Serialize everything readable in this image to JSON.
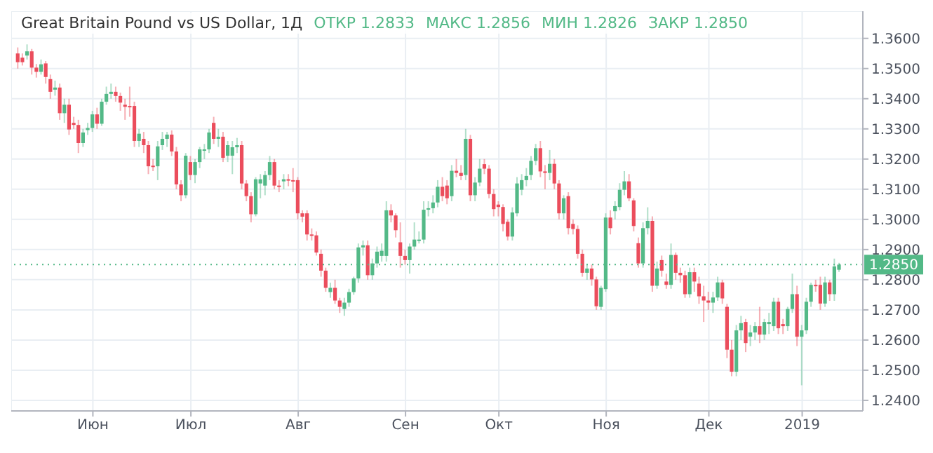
{
  "chart_data": {
    "type": "candlestick",
    "title": "Great Britain Pound vs US Dollar, 1Д",
    "annotations": [
      "ОТКР 1.2833",
      "МАКС 1.2856",
      "МИН 1.2826",
      "ЗАКР 1.2850"
    ],
    "categories": [
      null,
      null,
      null,
      null,
      null,
      null,
      null,
      null,
      null,
      null,
      null,
      null,
      null,
      null,
      null,
      null,
      "Июн",
      null,
      null,
      null,
      null,
      null,
      null,
      null,
      null,
      null,
      null,
      null,
      null,
      null,
      null,
      null,
      null,
      null,
      null,
      null,
      null,
      "Июл",
      null,
      null,
      null,
      null,
      null,
      null,
      null,
      null,
      null,
      null,
      null,
      null,
      null,
      null,
      null,
      null,
      null,
      null,
      null,
      null,
      null,
      null,
      "Авг",
      null,
      null,
      null,
      null,
      null,
      null,
      null,
      null,
      null,
      null,
      null,
      null,
      null,
      null,
      null,
      null,
      null,
      null,
      null,
      null,
      null,
      null,
      "Сен",
      null,
      null,
      null,
      null,
      null,
      null,
      null,
      null,
      null,
      null,
      null,
      null,
      null,
      null,
      null,
      null,
      null,
      null,
      null,
      "Окт",
      null,
      null,
      null,
      null,
      null,
      null,
      null,
      null,
      null,
      null,
      null,
      null,
      null,
      null,
      null,
      null,
      null,
      null,
      null,
      null,
      null,
      null,
      "Ноя",
      null,
      null,
      null,
      null,
      null,
      null,
      null,
      null,
      null,
      null,
      null,
      null,
      null,
      null,
      null,
      null,
      null,
      null,
      null,
      null,
      null,
      "Дек",
      null,
      null,
      null,
      null,
      null,
      null,
      null,
      null,
      null,
      null,
      null,
      null,
      null,
      null,
      null,
      null,
      null,
      null,
      null,
      "2019",
      null,
      null,
      null,
      null,
      null,
      null,
      null,
      null
    ],
    "ohlc": [
      [
        1.355,
        1.357,
        1.35,
        1.3521
      ],
      [
        1.3536,
        1.355,
        1.351,
        1.3521
      ],
      [
        1.3543,
        1.358,
        1.353,
        1.3557
      ],
      [
        1.3557,
        1.3565,
        1.348,
        1.3503
      ],
      [
        1.3503,
        1.3515,
        1.347,
        1.3489
      ],
      [
        1.3489,
        1.353,
        1.348,
        1.3514
      ],
      [
        1.3517,
        1.3525,
        1.345,
        1.3472
      ],
      [
        1.3465,
        1.348,
        1.34,
        1.3423
      ],
      [
        1.343,
        1.346,
        1.341,
        1.3437
      ],
      [
        1.3437,
        1.345,
        1.333,
        1.3352
      ],
      [
        1.3352,
        1.34,
        1.332,
        1.338
      ],
      [
        1.338,
        1.34,
        1.328,
        1.3298
      ],
      [
        1.332,
        1.334,
        1.33,
        1.3313
      ],
      [
        1.3313,
        1.333,
        1.322,
        1.3253
      ],
      [
        1.3253,
        1.33,
        1.324,
        1.3288
      ],
      [
        1.3296,
        1.332,
        1.328,
        1.3303
      ],
      [
        1.3303,
        1.336,
        1.329,
        1.3348
      ],
      [
        1.3348,
        1.337,
        1.33,
        1.3317
      ],
      [
        1.3317,
        1.34,
        1.331,
        1.339
      ],
      [
        1.339,
        1.344,
        1.338,
        1.3416
      ],
      [
        1.3416,
        1.345,
        1.34,
        1.3423
      ],
      [
        1.3423,
        1.344,
        1.339,
        1.3409
      ],
      [
        1.3409,
        1.342,
        1.336,
        1.3387
      ],
      [
        1.338,
        1.34,
        1.333,
        1.3373
      ],
      [
        1.3376,
        1.344,
        1.334,
        1.3373
      ],
      [
        1.3376,
        1.339,
        1.324,
        1.326
      ],
      [
        1.326,
        1.33,
        1.324,
        1.3284
      ],
      [
        1.3267,
        1.329,
        1.322,
        1.3246
      ],
      [
        1.3246,
        1.326,
        1.315,
        1.3176
      ],
      [
        1.3178,
        1.32,
        1.316,
        1.3176
      ],
      [
        1.3176,
        1.326,
        1.313,
        1.3242
      ],
      [
        1.3246,
        1.329,
        1.323,
        1.3267
      ],
      [
        1.3267,
        1.329,
        1.324,
        1.3281
      ],
      [
        1.3281,
        1.3295,
        1.321,
        1.3225
      ],
      [
        1.3225,
        1.324,
        1.31,
        1.3116
      ],
      [
        1.3116,
        1.313,
        1.306,
        1.308
      ],
      [
        1.308,
        1.322,
        1.307,
        1.3211
      ],
      [
        1.319,
        1.321,
        1.313,
        1.3147
      ],
      [
        1.3147,
        1.32,
        1.312,
        1.319
      ],
      [
        1.319,
        1.324,
        1.317,
        1.3232
      ],
      [
        1.3229,
        1.325,
        1.32,
        1.3232
      ],
      [
        1.3232,
        1.33,
        1.322,
        1.3288
      ],
      [
        1.332,
        1.334,
        1.325,
        1.3267
      ],
      [
        1.3267,
        1.33,
        1.324,
        1.3274
      ],
      [
        1.3274,
        1.329,
        1.319,
        1.3204
      ],
      [
        1.3211,
        1.326,
        1.319,
        1.3246
      ],
      [
        1.3211,
        1.326,
        1.315,
        1.3239
      ],
      [
        1.3239,
        1.327,
        1.322,
        1.3246
      ],
      [
        1.3246,
        1.326,
        1.31,
        1.3119
      ],
      [
        1.3119,
        1.313,
        1.306,
        1.3077
      ],
      [
        1.3077,
        1.309,
        1.299,
        1.3017
      ],
      [
        1.3017,
        1.314,
        1.301,
        1.3133
      ],
      [
        1.3119,
        1.315,
        1.307,
        1.3133
      ],
      [
        1.3112,
        1.316,
        1.308,
        1.3147
      ],
      [
        1.3147,
        1.321,
        1.313,
        1.319
      ],
      [
        1.319,
        1.32,
        1.31,
        1.3112
      ],
      [
        1.3112,
        1.313,
        1.309,
        1.3108
      ],
      [
        1.3126,
        1.315,
        1.31,
        1.3133
      ],
      [
        1.3133,
        1.315,
        1.311,
        1.313
      ],
      [
        1.313,
        1.317,
        1.309,
        1.3126
      ],
      [
        1.313,
        1.314,
        1.3,
        1.302
      ],
      [
        1.302,
        1.303,
        1.299,
        1.3009
      ],
      [
        1.302,
        1.303,
        1.293,
        1.295
      ],
      [
        1.295,
        1.297,
        1.293,
        1.2947
      ],
      [
        1.2947,
        1.296,
        1.288,
        1.289
      ],
      [
        1.2886,
        1.29,
        1.281,
        1.283
      ],
      [
        1.283,
        1.284,
        1.276,
        1.2773
      ],
      [
        1.2759,
        1.279,
        1.274,
        1.2773
      ],
      [
        1.2773,
        1.28,
        1.272,
        1.2731
      ],
      [
        1.2731,
        1.274,
        1.269,
        1.271
      ],
      [
        1.2703,
        1.274,
        1.268,
        1.2724
      ],
      [
        1.2724,
        1.277,
        1.271,
        1.2759
      ],
      [
        1.2759,
        1.281,
        1.275,
        1.2804
      ],
      [
        1.2804,
        1.292,
        1.279,
        1.2907
      ],
      [
        1.2907,
        1.293,
        1.288,
        1.2914
      ],
      [
        1.2914,
        1.293,
        1.28,
        1.2815
      ],
      [
        1.2815,
        1.287,
        1.28,
        1.2854
      ],
      [
        1.2854,
        1.291,
        1.284,
        1.2893
      ],
      [
        1.2879,
        1.292,
        1.286,
        1.2896
      ],
      [
        1.2879,
        1.306,
        1.286,
        1.303
      ],
      [
        1.303,
        1.305,
        1.299,
        1.3013
      ],
      [
        1.3013,
        1.302,
        1.294,
        1.2964
      ],
      [
        1.2924,
        1.299,
        1.284,
        1.2879
      ],
      [
        1.2879,
        1.29,
        1.285,
        1.2865
      ],
      [
        1.2865,
        1.292,
        1.282,
        1.291
      ],
      [
        1.291,
        1.299,
        1.29,
        1.2933
      ],
      [
        1.293,
        1.296,
        1.292,
        1.2933
      ],
      [
        1.2933,
        1.306,
        1.292,
        1.3032
      ],
      [
        1.3032,
        1.306,
        1.301,
        1.3037
      ],
      [
        1.3037,
        1.308,
        1.302,
        1.3056
      ],
      [
        1.3056,
        1.313,
        1.304,
        1.3108
      ],
      [
        1.3108,
        1.314,
        1.306,
        1.3077
      ],
      [
        1.3112,
        1.313,
        1.305,
        1.307
      ],
      [
        1.3077,
        1.318,
        1.306,
        1.3161
      ],
      [
        1.3161,
        1.32,
        1.314,
        1.3154
      ],
      [
        1.3154,
        1.318,
        1.313,
        1.3144
      ],
      [
        1.3147,
        1.33,
        1.313,
        1.3267
      ],
      [
        1.3267,
        1.328,
        1.306,
        1.308
      ],
      [
        1.308,
        1.314,
        1.306,
        1.3122
      ],
      [
        1.3122,
        1.32,
        1.311,
        1.3168
      ],
      [
        1.3183,
        1.32,
        1.315,
        1.3168
      ],
      [
        1.3168,
        1.318,
        1.307,
        1.3084
      ],
      [
        1.3084,
        1.31,
        1.301,
        1.3034
      ],
      [
        1.3049,
        1.306,
        1.301,
        1.3041
      ],
      [
        1.3041,
        1.305,
        1.296,
        1.2985
      ],
      [
        1.2992,
        1.3,
        1.293,
        1.2943
      ],
      [
        1.2943,
        1.304,
        1.293,
        1.3023
      ],
      [
        1.302,
        1.314,
        1.301,
        1.3119
      ],
      [
        1.3098,
        1.315,
        1.308,
        1.313
      ],
      [
        1.313,
        1.317,
        1.311,
        1.3144
      ],
      [
        1.3147,
        1.321,
        1.313,
        1.3194
      ],
      [
        1.3194,
        1.325,
        1.318,
        1.3236
      ],
      [
        1.3236,
        1.326,
        1.314,
        1.3159
      ],
      [
        1.3159,
        1.318,
        1.31,
        1.3154
      ],
      [
        1.3154,
        1.323,
        1.313,
        1.3184
      ],
      [
        1.3184,
        1.32,
        1.31,
        1.3119
      ],
      [
        1.3119,
        1.313,
        1.3,
        1.302
      ],
      [
        1.302,
        1.308,
        1.3,
        1.307
      ],
      [
        1.3077,
        1.309,
        1.295,
        1.2971
      ],
      [
        1.2985,
        1.3,
        1.295,
        1.2968
      ],
      [
        1.2968,
        1.298,
        1.287,
        1.2886
      ],
      [
        1.2886,
        1.29,
        1.281,
        1.2823
      ],
      [
        1.2823,
        1.285,
        1.28,
        1.2837
      ],
      [
        1.2837,
        1.285,
        1.278,
        1.2801
      ],
      [
        1.2801,
        1.281,
        1.27,
        1.2712
      ],
      [
        1.271,
        1.278,
        1.27,
        1.2773
      ],
      [
        1.2769,
        1.302,
        1.276,
        1.3006
      ],
      [
        1.3006,
        1.303,
        1.295,
        1.2971
      ],
      [
        1.3027,
        1.306,
        1.3,
        1.3044
      ],
      [
        1.3041,
        1.312,
        1.303,
        1.3098
      ],
      [
        1.3098,
        1.316,
        1.308,
        1.3126
      ],
      [
        1.3126,
        1.315,
        1.306,
        1.307
      ],
      [
        1.3063,
        1.307,
        1.296,
        1.2978
      ],
      [
        1.2921,
        1.294,
        1.284,
        1.2854
      ],
      [
        1.2854,
        1.299,
        1.284,
        1.2971
      ],
      [
        1.2971,
        1.304,
        1.295,
        1.2995
      ],
      [
        1.2995,
        1.301,
        1.276,
        1.278
      ],
      [
        1.278,
        1.286,
        1.277,
        1.2837
      ],
      [
        1.2865,
        1.288,
        1.281,
        1.283
      ],
      [
        1.2794,
        1.282,
        1.277,
        1.2783
      ],
      [
        1.2783,
        1.292,
        1.277,
        1.2882
      ],
      [
        1.2882,
        1.289,
        1.28,
        1.2823
      ],
      [
        1.2823,
        1.284,
        1.279,
        1.2815
      ],
      [
        1.2815,
        1.283,
        1.274,
        1.2752
      ],
      [
        1.2752,
        1.284,
        1.274,
        1.2825
      ],
      [
        1.2825,
        1.284,
        1.276,
        1.2794
      ],
      [
        1.2787,
        1.281,
        1.272,
        1.2745
      ],
      [
        1.2745,
        1.278,
        1.266,
        1.2731
      ],
      [
        1.2731,
        1.276,
        1.27,
        1.2724
      ],
      [
        1.2724,
        1.276,
        1.269,
        1.2741
      ],
      [
        1.2741,
        1.281,
        1.273,
        1.2791
      ],
      [
        1.2791,
        1.28,
        1.272,
        1.2738
      ],
      [
        1.271,
        1.272,
        1.254,
        1.2568
      ],
      [
        1.2568,
        1.26,
        1.248,
        1.2495
      ],
      [
        1.2495,
        1.265,
        1.248,
        1.2632
      ],
      [
        1.2632,
        1.268,
        1.26,
        1.2656
      ],
      [
        1.266,
        1.267,
        1.256,
        1.259
      ],
      [
        1.2611,
        1.265,
        1.258,
        1.2625
      ],
      [
        1.2625,
        1.266,
        1.26,
        1.2646
      ],
      [
        1.2646,
        1.271,
        1.259,
        1.2618
      ],
      [
        1.2618,
        1.267,
        1.26,
        1.266
      ],
      [
        1.2653,
        1.269,
        1.262,
        1.266
      ],
      [
        1.2646,
        1.274,
        1.263,
        1.2727
      ],
      [
        1.2727,
        1.274,
        1.262,
        1.2639
      ],
      [
        1.2653,
        1.267,
        1.262,
        1.2646
      ],
      [
        1.2646,
        1.271,
        1.263,
        1.2703
      ],
      [
        1.2703,
        1.282,
        1.269,
        1.2752
      ],
      [
        1.2752,
        1.278,
        1.258,
        1.2611
      ],
      [
        1.2611,
        1.265,
        1.245,
        1.2632
      ],
      [
        1.2632,
        1.274,
        1.262,
        1.2727
      ],
      [
        1.2727,
        1.279,
        1.271,
        1.2783
      ],
      [
        1.2783,
        1.28,
        1.276,
        1.278
      ],
      [
        1.2783,
        1.281,
        1.27,
        1.2721
      ],
      [
        1.2721,
        1.281,
        1.271,
        1.2791
      ],
      [
        1.2791,
        1.28,
        1.273,
        1.2752
      ],
      [
        1.2752,
        1.287,
        1.273,
        1.2844
      ],
      [
        1.2833,
        1.2856,
        1.2826,
        1.285
      ]
    ],
    "ylim": [
      1.2365,
      1.369
    ],
    "yticks": [
      {
        "value": 1.24,
        "label": "1.2400"
      },
      {
        "value": 1.25,
        "label": "1.2500"
      },
      {
        "value": 1.26,
        "label": "1.2600"
      },
      {
        "value": 1.27,
        "label": "1.2700"
      },
      {
        "value": 1.28,
        "label": "1.2800"
      },
      {
        "value": 1.29,
        "label": "1.2900"
      },
      {
        "value": 1.3,
        "label": "1.3000"
      },
      {
        "value": 1.31,
        "label": "1.3100"
      },
      {
        "value": 1.32,
        "label": "1.3200"
      },
      {
        "value": 1.33,
        "label": "1.3300"
      },
      {
        "value": 1.34,
        "label": "1.3400"
      },
      {
        "value": 1.35,
        "label": "1.3500"
      },
      {
        "value": 1.36,
        "label": "1.3600"
      }
    ],
    "ref_lines": [
      {
        "axis": "y",
        "value": 1.285,
        "label": "1.2850",
        "color": "#53b987",
        "line_style": "dotted"
      }
    ],
    "grid": true
  }
}
